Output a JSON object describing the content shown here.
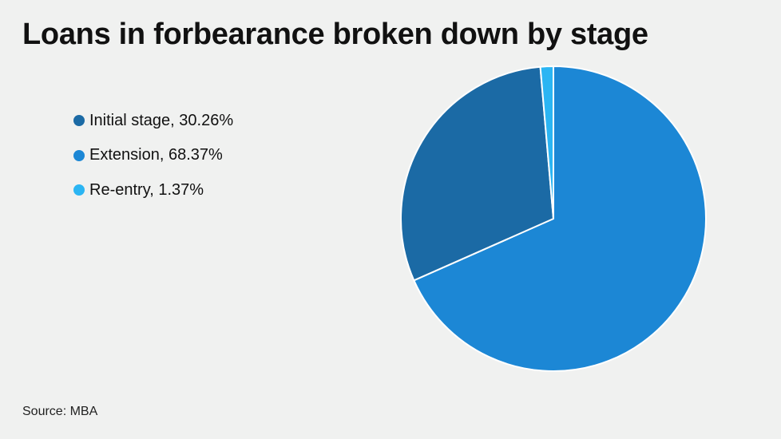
{
  "title": "Loans in forbearance broken down by stage",
  "source": "Source: MBA",
  "legend": [
    {
      "label": "Initial stage, 30.26%",
      "color": "#1b6aa5"
    },
    {
      "label": "Extension, 68.37%",
      "color": "#1c87d5"
    },
    {
      "label": "Re-entry, 1.37%",
      "color": "#2bb5f3"
    }
  ],
  "chart_data": {
    "type": "pie",
    "title": "Loans in forbearance broken down by stage",
    "categories": [
      "Initial stage",
      "Extension",
      "Re-entry"
    ],
    "values": [
      30.26,
      68.37,
      1.37
    ],
    "unit": "%",
    "colors": [
      "#1b6aa5",
      "#1c87d5",
      "#2bb5f3"
    ],
    "legend_position": "left",
    "slice_order_clockwise_from_top": [
      "Extension",
      "Initial stage",
      "Re-entry"
    ],
    "source": "MBA"
  }
}
